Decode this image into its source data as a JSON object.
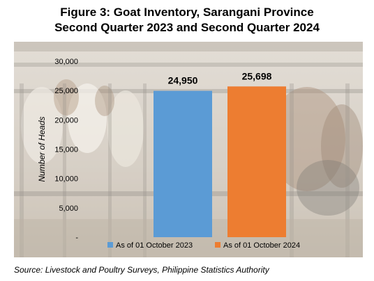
{
  "title_line1": "Figure 3: Goat Inventory, Sarangani Province",
  "title_line2": "Second Quarter 2023 and Second Quarter 2024",
  "source": "Source: Livestock and Poultry Surveys, Philippine Statistics Authority",
  "background_image": "goats-at-feeding-rail-photo",
  "chart_data": {
    "type": "bar",
    "categories": [
      "As of 01 October 2023",
      "As of 01 October 2024"
    ],
    "values": [
      24950,
      25698
    ],
    "value_labels": [
      "24,950",
      "25,698"
    ],
    "colors": [
      "#5b9bd5",
      "#ed7d31"
    ],
    "ylabel": "Number of Heads",
    "ylim": [
      0,
      30000
    ],
    "yticks": [
      0,
      5000,
      10000,
      15000,
      20000,
      25000,
      30000
    ],
    "ytick_labels": [
      "-",
      "5,000",
      "10,000",
      "15,000",
      "20,000",
      "25,000",
      "30,000"
    ],
    "legend": [
      "As of 01 October 2023",
      "As of 01 October 2024"
    ],
    "legend_position": "bottom",
    "grid": false
  }
}
